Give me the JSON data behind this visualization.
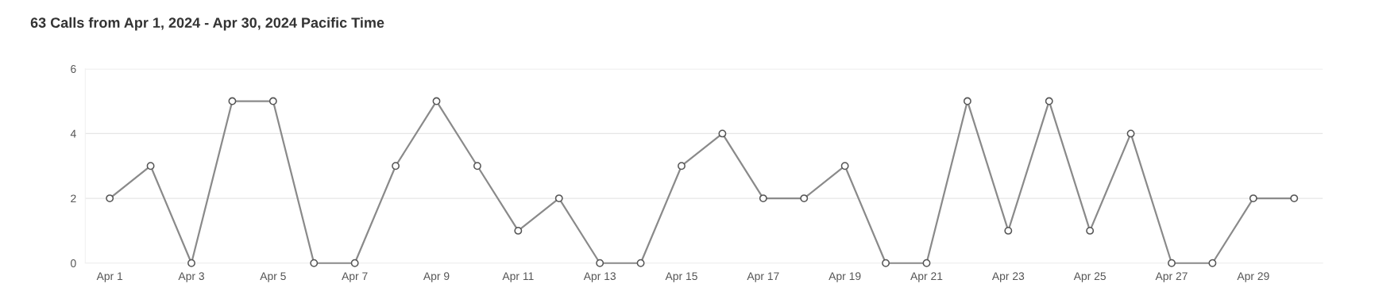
{
  "chart_data": {
    "type": "line",
    "title": "63 Calls from Apr 1, 2024 - Apr 30, 2024 Pacific Time",
    "categories": [
      "Apr 1",
      null,
      "Apr 3",
      null,
      "Apr 5",
      null,
      "Apr 7",
      null,
      "Apr 9",
      null,
      "Apr 11",
      null,
      "Apr 13",
      null,
      "Apr 15",
      null,
      "Apr 17",
      null,
      "Apr 19",
      null,
      "Apr 21",
      null,
      "Apr 23",
      null,
      "Apr 25",
      null,
      "Apr 27",
      null,
      "Apr 29",
      null
    ],
    "series": [
      {
        "color": "#8a8a8a",
        "values": [
          2,
          3,
          0,
          5,
          5,
          0,
          0,
          3,
          5,
          3,
          1,
          2,
          0,
          0,
          3,
          4,
          2,
          2,
          3,
          0,
          0,
          5,
          1,
          5,
          1,
          4,
          0,
          0,
          2,
          2
        ]
      }
    ],
    "ylim": [
      0,
      6
    ],
    "yticks": [
      0,
      2,
      4,
      6
    ],
    "grid": "y",
    "marker": "circle",
    "line_style": "solid",
    "legend": false
  }
}
